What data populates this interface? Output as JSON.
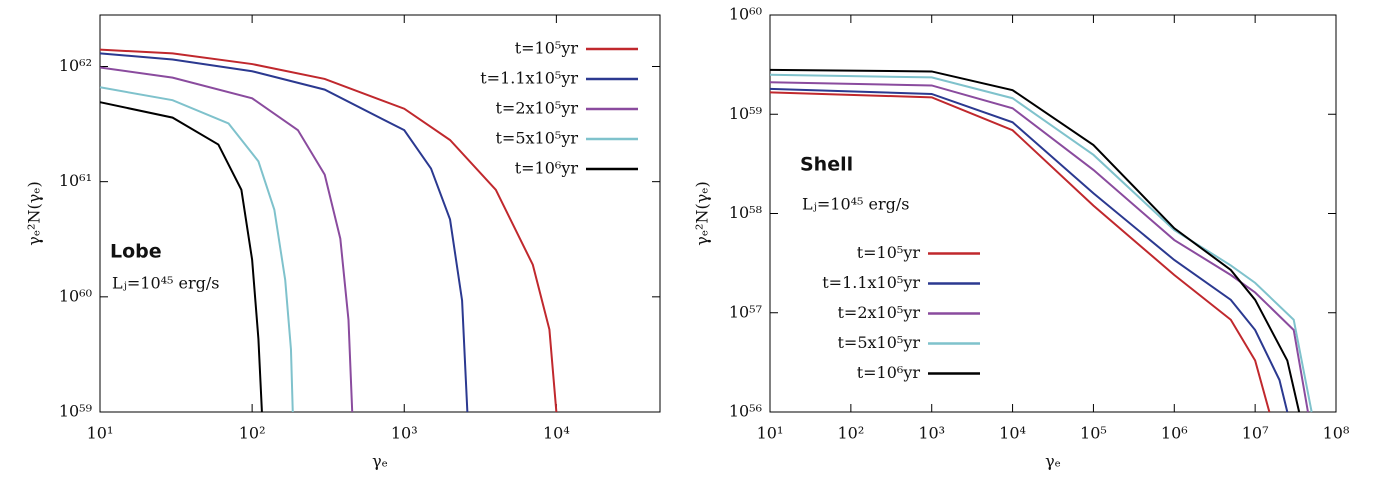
{
  "chart_data": [
    {
      "type": "line",
      "log_x": true,
      "log_y": true,
      "x_label": "γₑ",
      "y_label": "γₑ²N(γₑ)",
      "annotations": [
        "Lobe",
        "Lⱼ=10⁴⁵ erg/s"
      ],
      "legend": "upper right",
      "xlim": [
        10,
        48000
      ],
      "ylim": [
        1e+59,
        2.8e+62
      ],
      "xticks": [
        {
          "value": 10,
          "label": "10¹"
        },
        {
          "value": 100,
          "label": "10²"
        },
        {
          "value": 1000,
          "label": "10³"
        },
        {
          "value": 10000,
          "label": "10⁴"
        }
      ],
      "yticks": [
        {
          "value": 1e+59,
          "label": "10⁵⁹"
        },
        {
          "value": 1e+60,
          "label": "10⁶⁰"
        },
        {
          "value": 1e+61,
          "label": "10⁶¹"
        },
        {
          "value": 1e+62,
          "label": "10⁶²"
        }
      ],
      "series": [
        {
          "name": "t=10⁵yr",
          "color": "#c0282d",
          "x": [
            10,
            30,
            100,
            300,
            1000,
            2000,
            4000,
            7000,
            9000,
            10000
          ],
          "values": [
            1.4e+62,
            1.3e+62,
            1.05e+62,
            7.8e+61,
            4.3e+61,
            2.3e+61,
            8.5e+60,
            1.9e+60,
            5.2e+59,
            1e+59
          ]
        },
        {
          "name": "t=1.1x10⁵yr",
          "color": "#2b3990",
          "x": [
            10,
            30,
            100,
            300,
            1000,
            1500,
            2000,
            2400,
            2600
          ],
          "values": [
            1.3e+62,
            1.15e+62,
            9.1e+61,
            6.3e+61,
            2.8e+61,
            1.3e+61,
            4.7e+60,
            9.3e+59,
            1e+59
          ]
        },
        {
          "name": "t=2x10⁵yr",
          "color": "#8a4b9e",
          "x": [
            10,
            30,
            100,
            200,
            300,
            380,
            430,
            455
          ],
          "values": [
            9.8e+61,
            8e+61,
            5.3e+61,
            2.8e+61,
            1.15e+61,
            3.2e+60,
            6.3e+59,
            1e+59
          ]
        },
        {
          "name": "t=5x10⁵yr",
          "color": "#7fc2cc",
          "x": [
            10,
            30,
            70,
            110,
            140,
            165,
            180,
            185
          ],
          "values": [
            6.6e+61,
            5.1e+61,
            3.2e+61,
            1.5e+61,
            5.7e+60,
            1.4e+60,
            3.5e+59,
            1e+59
          ]
        },
        {
          "name": "t=10⁶yr",
          "color": "#000000",
          "x": [
            10,
            30,
            60,
            85,
            100,
            110,
            116
          ],
          "values": [
            4.9e+61,
            3.6e+61,
            2.1e+61,
            8.5e+60,
            2.1e+60,
            4.3e+59,
            1e+59
          ]
        }
      ]
    },
    {
      "type": "line",
      "log_x": true,
      "log_y": true,
      "x_label": "γₑ",
      "y_label": "γₑ²N(γₑ)",
      "annotations": [
        "Shell",
        "Lⱼ=10⁴⁵ erg/s"
      ],
      "legend": "center left",
      "xlim": [
        10,
        100000000
      ],
      "ylim": [
        1e+56,
        1e+60
      ],
      "xticks": [
        {
          "value": 10,
          "label": "10¹"
        },
        {
          "value": 100,
          "label": "10²"
        },
        {
          "value": 1000,
          "label": "10³"
        },
        {
          "value": 10000,
          "label": "10⁴"
        },
        {
          "value": 100000,
          "label": "10⁵"
        },
        {
          "value": 1000000,
          "label": "10⁶"
        },
        {
          "value": 10000000,
          "label": "10⁷"
        },
        {
          "value": 100000000,
          "label": "10⁸"
        }
      ],
      "yticks": [
        {
          "value": 1e+56,
          "label": "10⁵⁶"
        },
        {
          "value": 1e+57,
          "label": "10⁵⁷"
        },
        {
          "value": 1e+58,
          "label": "10⁵⁸"
        },
        {
          "value": 1e+59,
          "label": "10⁵⁹"
        },
        {
          "value": 1e+60,
          "label": "10⁶⁰"
        }
      ],
      "series": [
        {
          "name": "t=10⁵yr",
          "color": "#c0282d",
          "x": [
            10,
            1000,
            10000,
            100000,
            1000000,
            5000000,
            10000000,
            15000000
          ],
          "values": [
            1.66e+59,
            1.48e+59,
            6.9e+58,
            1.2e+58,
            2.4e+57,
            8.5e+56,
            3.3e+56,
            1e+56
          ]
        },
        {
          "name": "t=1.1x10⁵yr",
          "color": "#2b3990",
          "x": [
            10,
            1000,
            10000,
            100000,
            1000000,
            5000000,
            10000000,
            20000000,
            25000000
          ],
          "values": [
            1.8e+59,
            1.6e+59,
            8.3e+58,
            1.6e+58,
            3.4e+57,
            1.35e+57,
            6.7e+56,
            2.1e+56,
            1e+56
          ]
        },
        {
          "name": "t=2x10⁵yr",
          "color": "#8a4b9e",
          "x": [
            10,
            1000,
            10000,
            100000,
            1000000,
            5000000,
            10000000,
            30000000,
            45000000
          ],
          "values": [
            2.1e+59,
            1.95e+59,
            1.15e+59,
            2.75e+58,
            5.4e+57,
            2.4e+57,
            1.6e+57,
            6.7e+56,
            1e+56
          ]
        },
        {
          "name": "t=5x10⁵yr",
          "color": "#7fc2cc",
          "x": [
            10,
            1000,
            10000,
            100000,
            1000000,
            5000000,
            10000000,
            30000000,
            50000000
          ],
          "values": [
            2.5e+59,
            2.35e+59,
            1.45e+59,
            3.9e+58,
            6.8e+57,
            3e+57,
            2e+57,
            8.5e+56,
            1e+56
          ]
        },
        {
          "name": "t=10⁶yr",
          "color": "#000000",
          "x": [
            10,
            1000,
            10000,
            100000,
            1000000,
            5000000,
            10000000,
            25000000,
            35000000
          ],
          "values": [
            2.8e+59,
            2.7e+59,
            1.75e+59,
            4.9e+58,
            7.1e+57,
            2.7e+57,
            1.35e+57,
            3.3e+56,
            1e+56
          ]
        }
      ]
    }
  ]
}
